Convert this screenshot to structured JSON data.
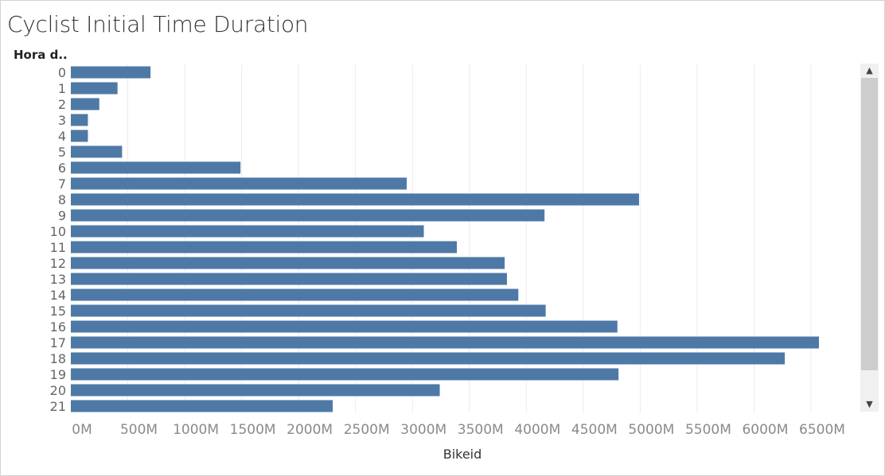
{
  "chart_data": {
    "type": "bar",
    "orientation": "horizontal",
    "title": "Cyclist Initial Time Duration",
    "ylabel": "Hora d..",
    "xlabel": "Bikeid",
    "categories": [
      "0",
      "1",
      "2",
      "3",
      "4",
      "5",
      "6",
      "7",
      "8",
      "9",
      "10",
      "11",
      "12",
      "13",
      "14",
      "15",
      "16",
      "17",
      "18",
      "19",
      "20",
      "21"
    ],
    "values": [
      700,
      410,
      250,
      150,
      150,
      450,
      1490,
      2950,
      4990,
      4160,
      3100,
      3390,
      3810,
      3830,
      3930,
      4170,
      4800,
      6570,
      6270,
      4810,
      3240,
      2300
    ],
    "xticks": [
      "0M",
      "500M",
      "1000M",
      "1500M",
      "2000M",
      "2500M",
      "3000M",
      "3500M",
      "4000M",
      "4500M",
      "5000M",
      "5500M",
      "6000M",
      "6500M"
    ],
    "xlim": [
      0,
      6500
    ],
    "grid": "vertical",
    "bar_color": "#4e79a7"
  },
  "scrollbar": {
    "up_icon": "▲",
    "down_icon": "▼"
  }
}
